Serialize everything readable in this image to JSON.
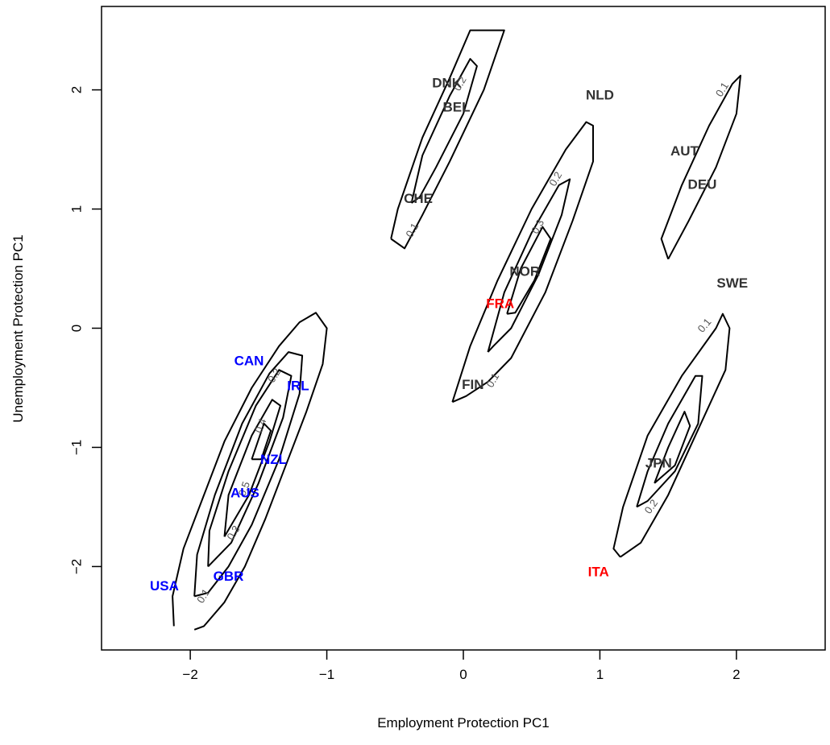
{
  "chart_data": {
    "type": "scatter",
    "xlabel": "Employment Protection PC1",
    "ylabel": "Unemployment Protection PC1",
    "xlim": [
      -2.65,
      2.65
    ],
    "ylim": [
      -2.7,
      2.7
    ],
    "x_ticks": [
      -2,
      -1,
      0,
      1,
      2
    ],
    "y_ticks": [
      -2,
      -1,
      0,
      1,
      2
    ],
    "x_tick_labels": [
      "−2",
      "−1",
      "0",
      "1",
      "2"
    ],
    "y_tick_labels": [
      "−2",
      "−1",
      "0",
      "1",
      "2"
    ],
    "colors": {
      "group_blue": "#0000ff",
      "group_red": "#ff0000",
      "group_dark": "#333333"
    },
    "points": [
      {
        "label": "DNK",
        "x": -0.12,
        "y": 2.05,
        "color": "#333333"
      },
      {
        "label": "BEL",
        "x": -0.05,
        "y": 1.85,
        "color": "#333333"
      },
      {
        "label": "CHE",
        "x": -0.33,
        "y": 1.08,
        "color": "#333333"
      },
      {
        "label": "NLD",
        "x": 1.0,
        "y": 1.95,
        "color": "#333333"
      },
      {
        "label": "AUT",
        "x": 1.62,
        "y": 1.48,
        "color": "#333333"
      },
      {
        "label": "DEU",
        "x": 1.75,
        "y": 1.2,
        "color": "#333333"
      },
      {
        "label": "NOR",
        "x": 0.45,
        "y": 0.47,
        "color": "#333333"
      },
      {
        "label": "FRA",
        "x": 0.27,
        "y": 0.2,
        "color": "#ff0000"
      },
      {
        "label": "SWE",
        "x": 1.97,
        "y": 0.37,
        "color": "#333333"
      },
      {
        "label": "FIN",
        "x": 0.07,
        "y": -0.48,
        "color": "#333333"
      },
      {
        "label": "CAN",
        "x": -1.57,
        "y": -0.28,
        "color": "#0000ff"
      },
      {
        "label": "IRL",
        "x": -1.21,
        "y": -0.49,
        "color": "#0000ff"
      },
      {
        "label": "NZL",
        "x": -1.39,
        "y": -1.11,
        "color": "#0000ff"
      },
      {
        "label": "AUS",
        "x": -1.6,
        "y": -1.39,
        "color": "#0000ff"
      },
      {
        "label": "USA",
        "x": -2.19,
        "y": -2.17,
        "color": "#0000ff"
      },
      {
        "label": "GBR",
        "x": -1.72,
        "y": -2.09,
        "color": "#0000ff"
      },
      {
        "label": "JPN",
        "x": 1.43,
        "y": -1.14,
        "color": "#333333"
      },
      {
        "label": "ITA",
        "x": 0.99,
        "y": -2.05,
        "color": "#ff0000"
      }
    ],
    "contours": [
      {
        "level": 0.1,
        "points": [
          [
            -2.12,
            -2.5
          ],
          [
            -2.13,
            -2.25
          ],
          [
            -2.05,
            -1.85
          ],
          [
            -1.9,
            -1.4
          ],
          [
            -1.75,
            -0.95
          ],
          [
            -1.55,
            -0.5
          ],
          [
            -1.35,
            -0.15
          ],
          [
            -1.2,
            0.05
          ],
          [
            -1.08,
            0.13
          ],
          [
            -1.0,
            0.0
          ],
          [
            -1.03,
            -0.3
          ],
          [
            -1.15,
            -0.7
          ],
          [
            -1.3,
            -1.15
          ],
          [
            -1.45,
            -1.6
          ],
          [
            -1.6,
            -2.0
          ],
          [
            -1.75,
            -2.3
          ],
          [
            -1.9,
            -2.5
          ],
          [
            -1.97,
            -2.53
          ]
        ]
      },
      {
        "level": 0.2,
        "points": [
          [
            -1.97,
            -2.25
          ],
          [
            -1.95,
            -1.9
          ],
          [
            -1.82,
            -1.4
          ],
          [
            -1.62,
            -0.8
          ],
          [
            -1.42,
            -0.38
          ],
          [
            -1.28,
            -0.2
          ],
          [
            -1.18,
            -0.23
          ],
          [
            -1.2,
            -0.55
          ],
          [
            -1.35,
            -1.1
          ],
          [
            -1.55,
            -1.65
          ],
          [
            -1.72,
            -2.0
          ],
          [
            -1.87,
            -2.22
          ],
          [
            -1.97,
            -2.25
          ]
        ]
      },
      {
        "level": 0.3,
        "points": [
          [
            -1.87,
            -2.0
          ],
          [
            -1.86,
            -1.7
          ],
          [
            -1.72,
            -1.2
          ],
          [
            -1.52,
            -0.65
          ],
          [
            -1.35,
            -0.35
          ],
          [
            -1.26,
            -0.4
          ],
          [
            -1.32,
            -0.75
          ],
          [
            -1.5,
            -1.3
          ],
          [
            -1.7,
            -1.8
          ],
          [
            -1.87,
            -2.0
          ]
        ]
      },
      {
        "level": 0.4,
        "points": [
          [
            -1.75,
            -1.75
          ],
          [
            -1.72,
            -1.4
          ],
          [
            -1.55,
            -0.9
          ],
          [
            -1.4,
            -0.6
          ],
          [
            -1.34,
            -0.65
          ],
          [
            -1.42,
            -0.95
          ],
          [
            -1.57,
            -1.4
          ],
          [
            -1.75,
            -1.75
          ]
        ]
      },
      {
        "level": 0.5,
        "points": [
          [
            -1.55,
            -1.1
          ],
          [
            -1.46,
            -0.8
          ],
          [
            -1.41,
            -0.86
          ],
          [
            -1.48,
            -1.1
          ],
          [
            -1.55,
            -1.1
          ]
        ]
      },
      {
        "level": 0.1,
        "points": [
          [
            -0.53,
            0.75
          ],
          [
            -0.48,
            1.0
          ],
          [
            -0.3,
            1.6
          ],
          [
            -0.1,
            2.1
          ],
          [
            0.05,
            2.5
          ],
          [
            0.3,
            2.5
          ],
          [
            0.15,
            2.0
          ],
          [
            -0.1,
            1.4
          ],
          [
            -0.3,
            0.95
          ],
          [
            -0.43,
            0.67
          ],
          [
            -0.53,
            0.75
          ]
        ]
      },
      {
        "level": 0.2,
        "points": [
          [
            -0.38,
            1.05
          ],
          [
            -0.3,
            1.45
          ],
          [
            -0.1,
            1.95
          ],
          [
            0.05,
            2.26
          ],
          [
            0.1,
            2.2
          ],
          [
            0.0,
            1.8
          ],
          [
            -0.2,
            1.35
          ],
          [
            -0.32,
            1.1
          ],
          [
            -0.38,
            1.05
          ]
        ]
      },
      {
        "level": 0.1,
        "points": [
          [
            -0.08,
            -0.62
          ],
          [
            0.05,
            -0.15
          ],
          [
            0.25,
            0.4
          ],
          [
            0.5,
            1.0
          ],
          [
            0.75,
            1.5
          ],
          [
            0.9,
            1.73
          ],
          [
            0.95,
            1.7
          ],
          [
            0.95,
            1.4
          ],
          [
            0.8,
            0.9
          ],
          [
            0.6,
            0.3
          ],
          [
            0.35,
            -0.25
          ],
          [
            0.18,
            -0.45
          ],
          [
            0.02,
            -0.57
          ],
          [
            -0.08,
            -0.62
          ]
        ]
      },
      {
        "level": 0.2,
        "points": [
          [
            0.18,
            -0.2
          ],
          [
            0.3,
            0.3
          ],
          [
            0.5,
            0.8
          ],
          [
            0.7,
            1.2
          ],
          [
            0.78,
            1.25
          ],
          [
            0.72,
            0.95
          ],
          [
            0.55,
            0.45
          ],
          [
            0.35,
            0.0
          ],
          [
            0.22,
            -0.15
          ],
          [
            0.18,
            -0.2
          ]
        ]
      },
      {
        "level": 0.3,
        "points": [
          [
            0.32,
            0.12
          ],
          [
            0.42,
            0.5
          ],
          [
            0.58,
            0.85
          ],
          [
            0.64,
            0.75
          ],
          [
            0.52,
            0.4
          ],
          [
            0.38,
            0.13
          ],
          [
            0.32,
            0.12
          ]
        ]
      },
      {
        "level": 0.1,
        "points": [
          [
            1.5,
            0.58
          ],
          [
            1.45,
            0.75
          ],
          [
            1.6,
            1.2
          ],
          [
            1.8,
            1.7
          ],
          [
            1.97,
            2.05
          ],
          [
            2.03,
            2.12
          ],
          [
            2.0,
            1.8
          ],
          [
            1.85,
            1.35
          ],
          [
            1.65,
            0.9
          ],
          [
            1.5,
            0.58
          ]
        ]
      },
      {
        "level": 0.1,
        "points": [
          [
            1.15,
            -1.92
          ],
          [
            1.1,
            -1.85
          ],
          [
            1.17,
            -1.5
          ],
          [
            1.35,
            -0.9
          ],
          [
            1.6,
            -0.4
          ],
          [
            1.85,
            0.0
          ],
          [
            1.9,
            0.12
          ],
          [
            1.95,
            0.0
          ],
          [
            1.92,
            -0.35
          ],
          [
            1.7,
            -0.9
          ],
          [
            1.5,
            -1.4
          ],
          [
            1.3,
            -1.8
          ],
          [
            1.15,
            -1.92
          ]
        ]
      },
      {
        "level": 0.2,
        "points": [
          [
            1.27,
            -1.5
          ],
          [
            1.35,
            -1.2
          ],
          [
            1.5,
            -0.8
          ],
          [
            1.7,
            -0.4
          ],
          [
            1.75,
            -0.4
          ],
          [
            1.72,
            -0.8
          ],
          [
            1.55,
            -1.2
          ],
          [
            1.35,
            -1.45
          ],
          [
            1.27,
            -1.5
          ]
        ]
      },
      {
        "level": 0.3,
        "points": [
          [
            1.4,
            -1.3
          ],
          [
            1.5,
            -1.0
          ],
          [
            1.62,
            -0.7
          ],
          [
            1.66,
            -0.82
          ],
          [
            1.55,
            -1.15
          ],
          [
            1.4,
            -1.3
          ]
        ]
      }
    ],
    "contour_labels": [
      {
        "text": "0.1",
        "x": -1.9,
        "y": -2.25,
        "angle": -58
      },
      {
        "text": "0.2",
        "x": -1.38,
        "y": -0.4,
        "angle": -58
      },
      {
        "text": "0.4",
        "x": -1.48,
        "y": -0.82,
        "angle": -70
      },
      {
        "text": "0.5",
        "x": -1.6,
        "y": -1.35,
        "angle": -70
      },
      {
        "text": "0.3",
        "x": -1.68,
        "y": -1.72,
        "angle": -58
      },
      {
        "text": "0.1",
        "x": -0.37,
        "y": 0.82,
        "angle": -60
      },
      {
        "text": "0.2",
        "x": -0.02,
        "y": 2.05,
        "angle": -60
      },
      {
        "text": "0.1",
        "x": 0.22,
        "y": -0.44,
        "angle": -60
      },
      {
        "text": "0.2",
        "x": 0.68,
        "y": 1.25,
        "angle": -60
      },
      {
        "text": "0.3",
        "x": 0.55,
        "y": 0.85,
        "angle": -60
      },
      {
        "text": "0.1",
        "x": 1.9,
        "y": 2.0,
        "angle": -58
      },
      {
        "text": "0.1",
        "x": 1.77,
        "y": 0.02,
        "angle": -50
      },
      {
        "text": "0.2",
        "x": 1.38,
        "y": -1.5,
        "angle": -55
      }
    ]
  }
}
